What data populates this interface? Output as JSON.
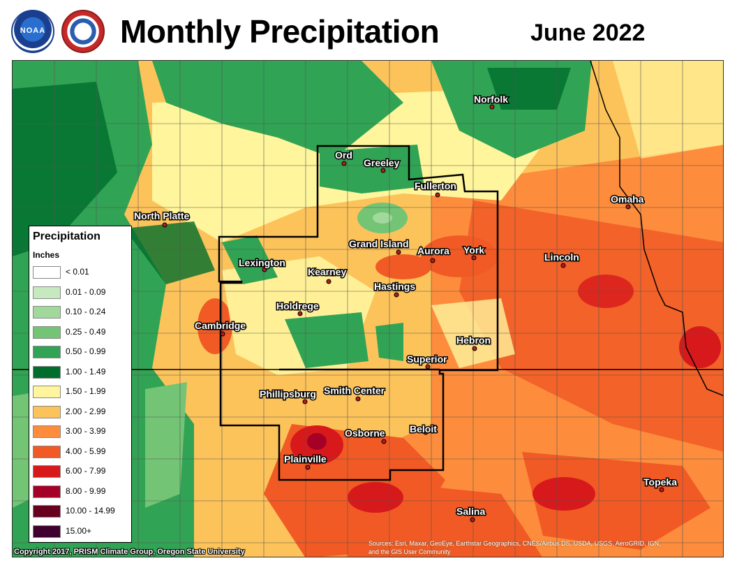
{
  "header": {
    "title": "Monthly Precipitation",
    "date": "June 2022",
    "logo_left_text": "NOAA"
  },
  "legend": {
    "title": "Precipitation",
    "units": "Inches",
    "items": [
      {
        "label": "< 0.01",
        "color": "#ffffff"
      },
      {
        "label": "0.01 - 0.09",
        "color": "#c7e9c0"
      },
      {
        "label": "0.10 - 0.24",
        "color": "#a1d99b"
      },
      {
        "label": "0.25 - 0.49",
        "color": "#74c476"
      },
      {
        "label": "0.50 - 0.99",
        "color": "#31a354"
      },
      {
        "label": "1.00 - 1.49",
        "color": "#006d2c"
      },
      {
        "label": "1.50 - 1.99",
        "color": "#fff59d"
      },
      {
        "label": "2.00 - 2.99",
        "color": "#fdc35b"
      },
      {
        "label": "3.00 - 3.99",
        "color": "#fd8d3c"
      },
      {
        "label": "4.00 - 5.99",
        "color": "#f15a24"
      },
      {
        "label": "6.00 - 7.99",
        "color": "#d7191c"
      },
      {
        "label": "8.00 - 9.99",
        "color": "#a50026"
      },
      {
        "label": "10.00 - 14.99",
        "color": "#67001f"
      },
      {
        "label": "15.00+",
        "color": "#3f0030"
      }
    ]
  },
  "cities": [
    {
      "name": "Norfolk"
    },
    {
      "name": "Ord"
    },
    {
      "name": "Greeley"
    },
    {
      "name": "Fullerton"
    },
    {
      "name": "Omaha"
    },
    {
      "name": "North Platte"
    },
    {
      "name": "Grand Island"
    },
    {
      "name": "Aurora"
    },
    {
      "name": "York"
    },
    {
      "name": "Lincoln"
    },
    {
      "name": "Lexington"
    },
    {
      "name": "Kearney"
    },
    {
      "name": "Hastings"
    },
    {
      "name": "Holdrege"
    },
    {
      "name": "Cambridge"
    },
    {
      "name": "Hebron"
    },
    {
      "name": "Superior"
    },
    {
      "name": "Phillipsburg"
    },
    {
      "name": "Smith Center"
    },
    {
      "name": "Osborne"
    },
    {
      "name": "Beloit"
    },
    {
      "name": "Plainville"
    },
    {
      "name": "Topeka"
    },
    {
      "name": "Salina"
    }
  ],
  "footer": {
    "copyright": "Copyright 2017, PRISM Climate Group, Oregon State University",
    "sources_line1": "Sources: Esri, Maxar, GeoEye, Earthstar Geographics, CNES/Airbus DS, USDA, USGS, AeroGRID, IGN,",
    "sources_line2": "and the GIS User Community"
  }
}
